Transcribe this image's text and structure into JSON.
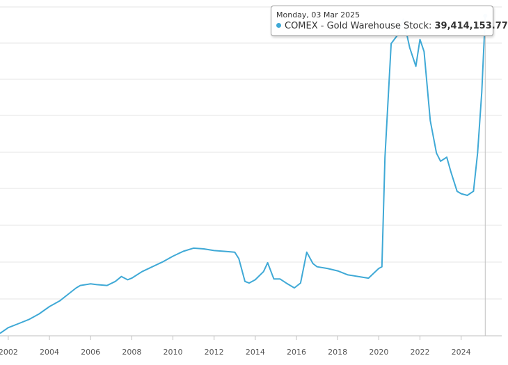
{
  "chart_data": {
    "type": "line",
    "title": "",
    "xlabel": "",
    "ylabel": "",
    "x_ticks": [
      "2002",
      "2004",
      "2006",
      "2008",
      "2010",
      "2012",
      "2014",
      "2016",
      "2018",
      "2020",
      "2022",
      "2024"
    ],
    "xlim": [
      2001.6,
      2025.6
    ],
    "ylim": [
      0,
      40.5
    ],
    "y_units": "million oz (estimated; axis labels not visible)",
    "grid": true,
    "legend": "none",
    "series": [
      {
        "name": "COMEX - Gold Warehouse Stock",
        "color": "#3fa9d6",
        "x": [
          2001.6,
          2002.0,
          2002.5,
          2003.0,
          2003.5,
          2004.0,
          2004.5,
          2005.0,
          2005.3,
          2005.5,
          2006.0,
          2006.3,
          2006.8,
          2007.2,
          2007.5,
          2007.8,
          2008.0,
          2008.5,
          2009.0,
          2009.5,
          2010.0,
          2010.5,
          2011.0,
          2011.5,
          2012.0,
          2012.5,
          2013.0,
          2013.2,
          2013.5,
          2013.7,
          2014.0,
          2014.4,
          2014.6,
          2014.9,
          2015.2,
          2015.5,
          2015.9,
          2016.2,
          2016.5,
          2016.8,
          2017.0,
          2017.5,
          2018.0,
          2018.5,
          2019.0,
          2019.5,
          2020.0,
          2020.15,
          2020.3,
          2020.6,
          2020.9,
          2021.2,
          2021.5,
          2021.8,
          2022.0,
          2022.2,
          2022.5,
          2022.8,
          2023.0,
          2023.3,
          2023.5,
          2023.8,
          2024.0,
          2024.3,
          2024.6,
          2024.8,
          2025.0,
          2025.17
        ],
        "y": [
          0.3,
          1.0,
          1.5,
          2.0,
          2.7,
          3.6,
          4.3,
          5.3,
          5.9,
          6.2,
          6.4,
          6.3,
          6.2,
          6.7,
          7.3,
          6.9,
          7.1,
          7.9,
          8.5,
          9.1,
          9.8,
          10.4,
          10.8,
          10.7,
          10.5,
          10.4,
          10.3,
          9.5,
          6.7,
          6.5,
          6.9,
          7.9,
          9.0,
          7.0,
          7.0,
          6.5,
          5.9,
          6.5,
          10.3,
          8.9,
          8.5,
          8.3,
          8.0,
          7.5,
          7.3,
          7.1,
          8.3,
          8.5,
          22.0,
          36.0,
          37.0,
          39.0,
          35.5,
          33.2,
          36.5,
          35.0,
          26.5,
          22.5,
          21.5,
          22.0,
          20.2,
          17.8,
          17.5,
          17.3,
          17.8,
          22.5,
          30.0,
          39.41
        ]
      }
    ],
    "tooltip": {
      "date": "Monday, 03 Mar 2025",
      "series_label": "COMEX - Gold Warehouse Stock:",
      "value": "39,414,153.77"
    }
  }
}
